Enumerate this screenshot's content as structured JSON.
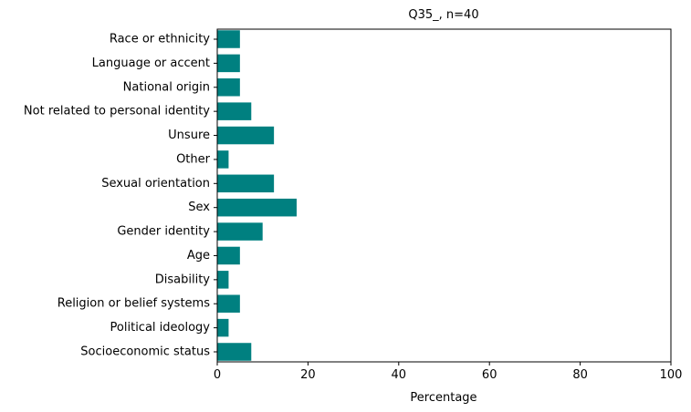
{
  "chart_data": {
    "type": "bar",
    "orientation": "horizontal",
    "title": "Q35_, n=40",
    "xlabel": "Percentage",
    "ylabel": "",
    "xlim": [
      0,
      100
    ],
    "xticks": [
      "0",
      "20",
      "40",
      "60",
      "80",
      "100"
    ],
    "grid": false,
    "bar_color": "#008080",
    "categories": [
      "Race or ethnicity",
      "Language or accent",
      "National origin",
      "Not related to personal identity",
      "Unsure",
      "Other",
      "Sexual orientation",
      "Sex",
      "Gender identity",
      "Age",
      "Disability",
      "Religion or belief systems",
      "Political ideology",
      "Socioeconomic status"
    ],
    "values": [
      5,
      5,
      5,
      7.5,
      12.5,
      2.5,
      12.5,
      17.5,
      10,
      5,
      2.5,
      5,
      2.5,
      7.5
    ]
  }
}
